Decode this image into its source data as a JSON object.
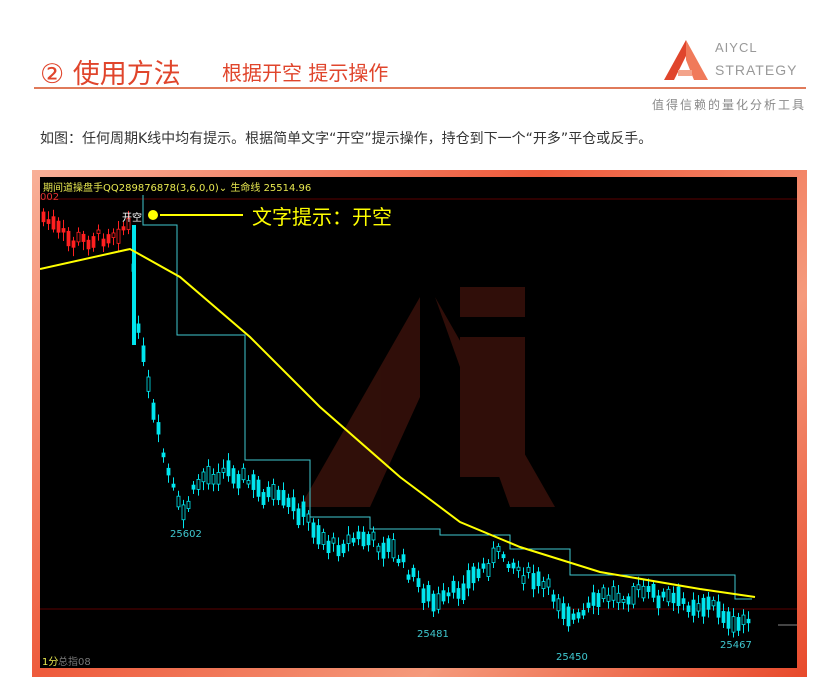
{
  "header": {
    "number_title": "② 使用方法",
    "subtitle": "根据开空 提示操作"
  },
  "logo": {
    "line1": "AIYCL",
    "line2": "STRATEGY",
    "color": "#e0452c"
  },
  "tagline": "值得信赖的量化分析工具",
  "description": "如图：任何周期K线中均有提示。根据简单文字“开空”提示操作，持仓到下一个“开多”平仓或反手。",
  "chart": {
    "indicator_title": "期间道操盘手QQ289876878(3,6,0,0)",
    "lifeline_label": "生命线",
    "lifeline_value": "25514.96",
    "top_left_fragment": "002",
    "signal_label": "开空",
    "annotation": "文字提示：开空",
    "bottom_left": "1分",
    "bottom_left_2": "总指08",
    "colors": {
      "down_candle": "#00e5ee",
      "up_candle": "#ff2020",
      "lifeline": "#ffff00",
      "stepline": "#3fc8d0",
      "text": "#e8e850"
    }
  },
  "chart_data": {
    "type": "candlestick",
    "price_labels": [
      {
        "label": "25602"
      },
      {
        "label": "25481"
      },
      {
        "label": "25450"
      },
      {
        "label": "25467"
      }
    ]
  }
}
